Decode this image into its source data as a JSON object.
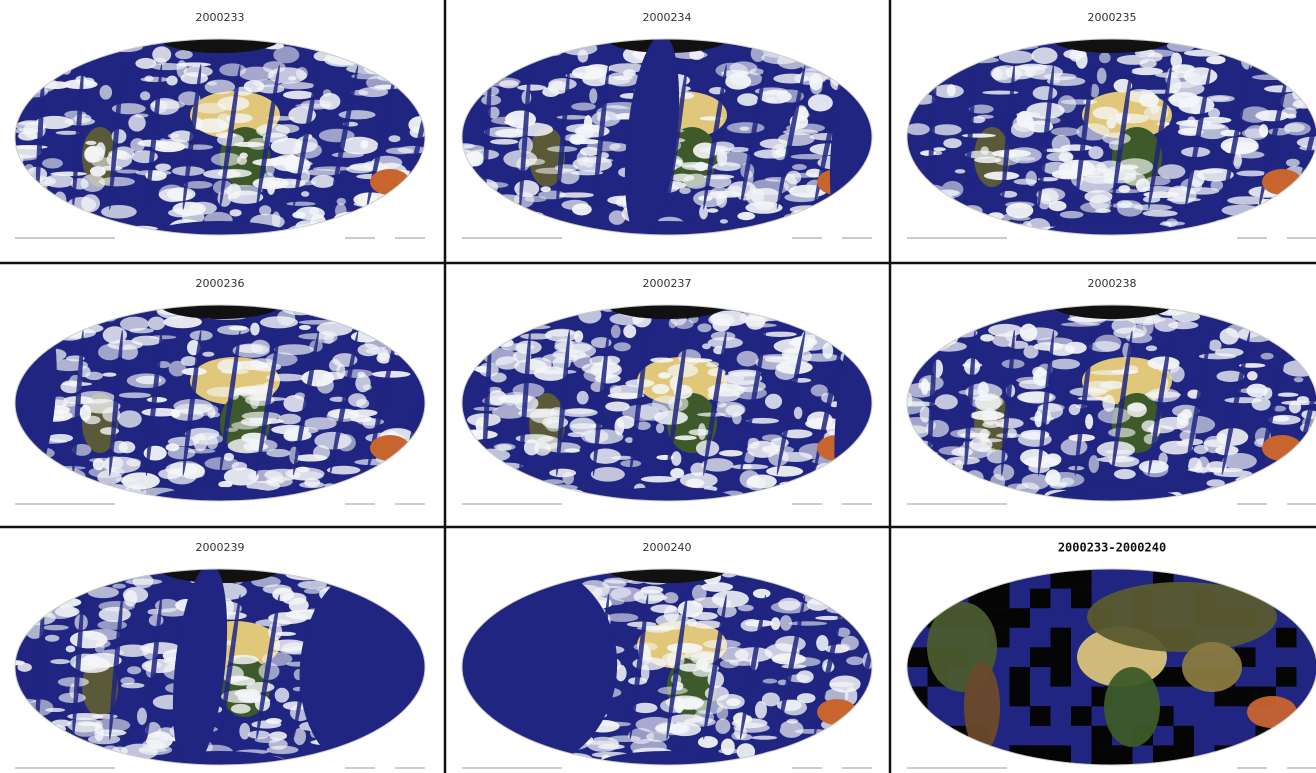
{
  "panels": [
    {
      "title": "2000233"
    },
    {
      "title": "2000234"
    },
    {
      "title": "2000235"
    },
    {
      "title": "2000236"
    },
    {
      "title": "2000237"
    },
    {
      "title": "2000238"
    },
    {
      "title": "2000239"
    },
    {
      "title": "2000240"
    },
    {
      "title": "2000233-2000240"
    }
  ]
}
